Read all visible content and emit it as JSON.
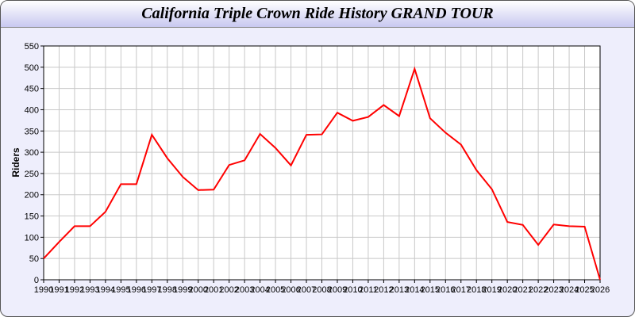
{
  "chart_data": {
    "type": "line",
    "title": "California Triple Crown Ride History GRAND TOUR",
    "xlabel": "",
    "ylabel": "Riders",
    "ylim": [
      0,
      550
    ],
    "yticks": [
      0,
      50,
      100,
      150,
      200,
      250,
      300,
      350,
      400,
      450,
      500,
      550
    ],
    "grid": true,
    "line_color": "#ff0000",
    "x": [
      1990,
      1991,
      1992,
      1993,
      1994,
      1995,
      1996,
      1997,
      1998,
      1999,
      2000,
      2001,
      2002,
      2003,
      2004,
      2005,
      2006,
      2007,
      2008,
      2009,
      2010,
      2011,
      2012,
      2013,
      2014,
      2015,
      2016,
      2017,
      2018,
      2019,
      2020,
      2021,
      2022,
      2023,
      2024,
      2025,
      2026
    ],
    "values": [
      50,
      89,
      126,
      126,
      160,
      225,
      225,
      341,
      286,
      242,
      211,
      212,
      270,
      281,
      343,
      310,
      269,
      341,
      342,
      393,
      374,
      383,
      411,
      385,
      496,
      380,
      346,
      318,
      258,
      213,
      136,
      129,
      82,
      130,
      126,
      125,
      0
    ]
  }
}
